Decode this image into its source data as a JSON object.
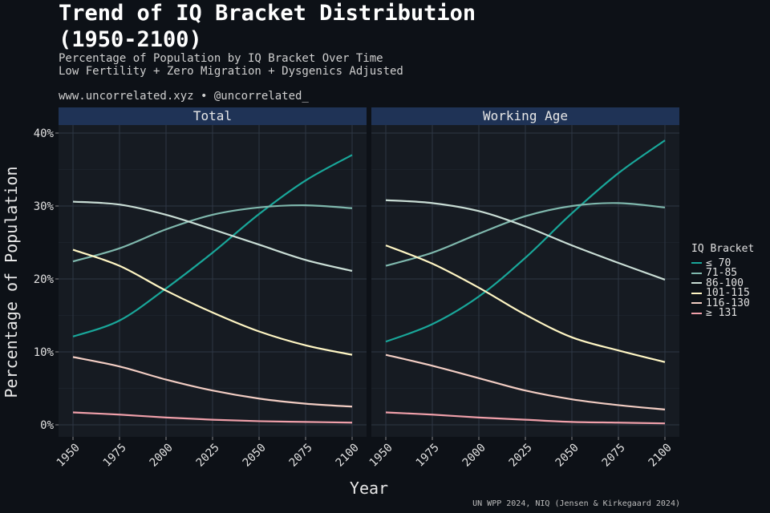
{
  "header": {
    "title": "Trend of IQ Bracket Distribution (1950-2100)",
    "subtitle_line1": "Percentage of Population by IQ Bracket Over Time",
    "subtitle_line2": "Low Fertility + Zero Migration + Dysgenics Adjusted",
    "credit": "www.uncorrelated.xyz • @uncorrelated_",
    "caption": "UN WPP 2024, NIQ (Jensen & Kirkegaard 2024)"
  },
  "legend": {
    "title": "IQ Bracket",
    "items": [
      {
        "label": "≤ 70",
        "color": "#19a79a"
      },
      {
        "label": "71-85",
        "color": "#7fb8ad"
      },
      {
        "label": "86-100",
        "color": "#c9ddd5"
      },
      {
        "label": "101-115",
        "color": "#fff6c4"
      },
      {
        "label": "116-130",
        "color": "#f2cdc3"
      },
      {
        "label": "≥ 131",
        "color": "#f0a0aa"
      }
    ]
  },
  "chart_data": {
    "type": "line",
    "xlabel": "Year",
    "ylabel": "Percentage of Population",
    "xlim": [
      1950,
      2100
    ],
    "ylim": [
      0,
      40
    ],
    "x_ticks": [
      1950,
      1975,
      2000,
      2025,
      2050,
      2075,
      2100
    ],
    "y_ticks": [
      0,
      10,
      20,
      30,
      40
    ],
    "y_tick_labels": [
      "0%",
      "10%",
      "20%",
      "30%",
      "40%"
    ],
    "grid": true,
    "legend_position": "right",
    "x": [
      1950,
      1975,
      2000,
      2025,
      2050,
      2075,
      2100
    ],
    "panels": [
      {
        "facet": "Total",
        "series": [
          {
            "name": "≤ 70",
            "values": [
              12.1,
              14.3,
              18.7,
              23.6,
              28.9,
              33.5,
              37.0
            ]
          },
          {
            "name": "71-85",
            "values": [
              22.4,
              24.2,
              26.8,
              28.8,
              29.8,
              30.1,
              29.7
            ]
          },
          {
            "name": "86-100",
            "values": [
              30.6,
              30.2,
              28.8,
              26.8,
              24.7,
              22.6,
              21.1
            ]
          },
          {
            "name": "101-115",
            "values": [
              24.0,
              21.8,
              18.4,
              15.4,
              12.8,
              10.9,
              9.6
            ]
          },
          {
            "name": "116-130",
            "values": [
              9.3,
              8.0,
              6.2,
              4.7,
              3.6,
              2.9,
              2.5
            ]
          },
          {
            "name": "≥ 131",
            "values": [
              1.7,
              1.4,
              1.0,
              0.7,
              0.5,
              0.4,
              0.3
            ]
          }
        ]
      },
      {
        "facet": "Working Age",
        "series": [
          {
            "name": "≤ 70",
            "values": [
              11.4,
              13.8,
              17.6,
              22.9,
              29.0,
              34.5,
              39.0
            ]
          },
          {
            "name": "71-85",
            "values": [
              21.8,
              23.6,
              26.2,
              28.6,
              30.0,
              30.4,
              29.8
            ]
          },
          {
            "name": "86-100",
            "values": [
              30.8,
              30.4,
              29.3,
              27.2,
              24.6,
              22.2,
              19.9
            ]
          },
          {
            "name": "101-115",
            "values": [
              24.6,
              22.1,
              18.8,
              15.1,
              12.0,
              10.2,
              8.6
            ]
          },
          {
            "name": "116-130",
            "values": [
              9.6,
              8.1,
              6.4,
              4.7,
              3.5,
              2.7,
              2.1
            ]
          },
          {
            "name": "≥ 131",
            "values": [
              1.7,
              1.4,
              1.0,
              0.7,
              0.4,
              0.3,
              0.2
            ]
          }
        ]
      }
    ]
  }
}
